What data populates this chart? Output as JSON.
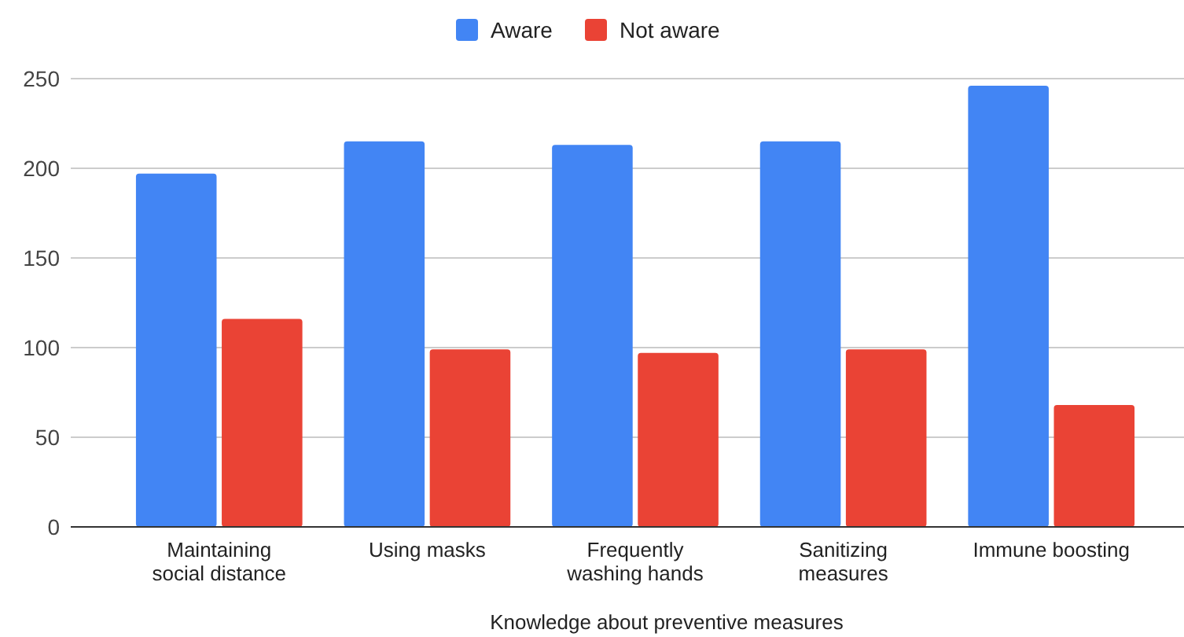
{
  "chart_data": {
    "type": "bar",
    "xlabel": "Knowledge about preventive measures",
    "categories": [
      "Maintaining social distance",
      "Using masks",
      "Frequently washing hands",
      "Sanitizing measures",
      "Immune boosting"
    ],
    "series": [
      {
        "name": "Aware",
        "color": "#4285f4",
        "values": [
          197,
          215,
          213,
          215,
          246
        ]
      },
      {
        "name": "Not aware",
        "color": "#ea4335",
        "values": [
          116,
          99,
          97,
          99,
          68
        ]
      }
    ],
    "ylim": [
      0,
      250
    ],
    "yticks": [
      0,
      50,
      100,
      150,
      200,
      250
    ],
    "grid": "y",
    "legend": "top"
  }
}
